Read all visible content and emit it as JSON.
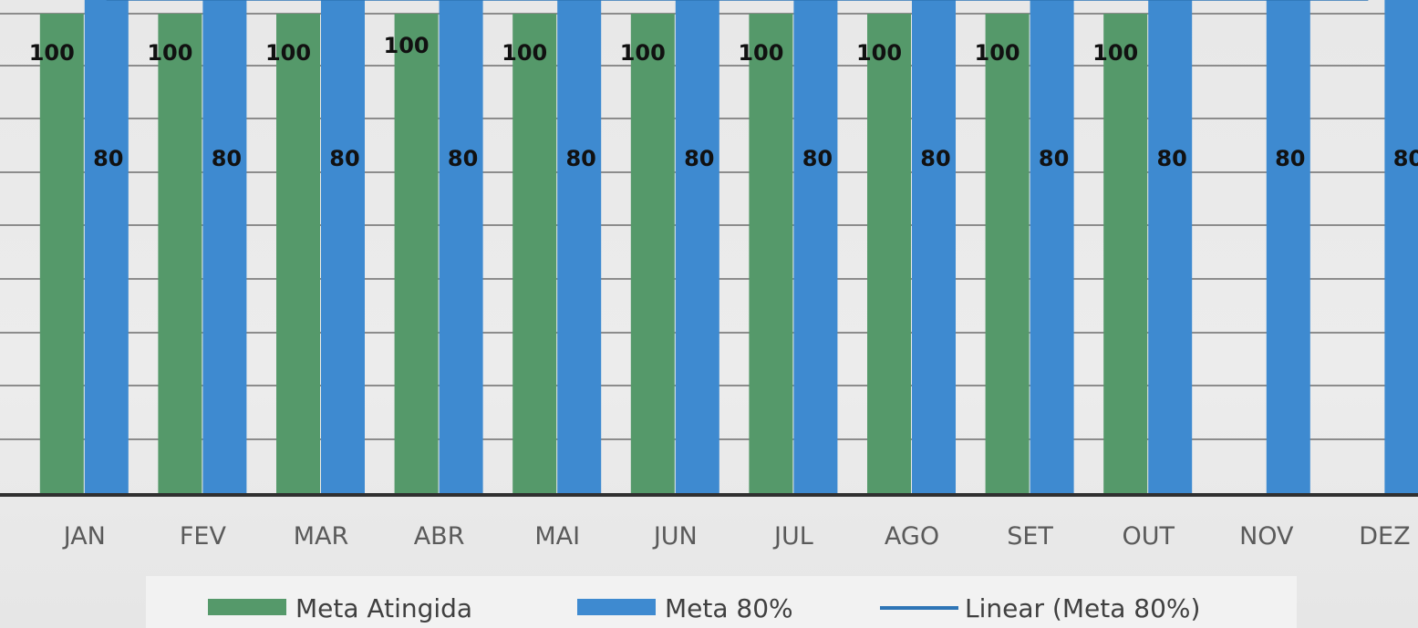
{
  "chart_data": {
    "type": "bar",
    "categories": [
      "JAN",
      "FEV",
      "MAR",
      "ABR",
      "MAI",
      "JUN",
      "JUL",
      "AGO",
      "SET",
      "OUT",
      "NOV",
      "DEZ"
    ],
    "series": [
      {
        "name": "Meta Atingida",
        "type": "bar",
        "color": "#55996a",
        "values": [
          100,
          100,
          100,
          100,
          100,
          100,
          100,
          100,
          100,
          100,
          null,
          null
        ],
        "labels": [
          "100",
          "100",
          "100",
          "100",
          "100",
          "100",
          "100",
          "100",
          "100",
          "100",
          "",
          ""
        ]
      },
      {
        "name": "Meta 80%",
        "type": "bar",
        "color": "#3e8ad0",
        "values": [
          80,
          80,
          80,
          80,
          80,
          80,
          80,
          80,
          80,
          80,
          80,
          80
        ],
        "labels": [
          "80",
          "80",
          "80",
          "80",
          "80",
          "80",
          "80",
          "80",
          "80",
          "80",
          "80",
          "80"
        ]
      },
      {
        "name": "Linear (Meta 80%)",
        "type": "line",
        "color": "#2e75b6",
        "values": [
          80,
          80,
          80,
          80,
          80,
          80,
          80,
          80,
          80,
          80,
          80,
          80
        ]
      }
    ],
    "title": "",
    "xlabel": "",
    "ylabel": "",
    "ylim": [
      0,
      100
    ],
    "grid": true,
    "legend_position": "bottom"
  }
}
